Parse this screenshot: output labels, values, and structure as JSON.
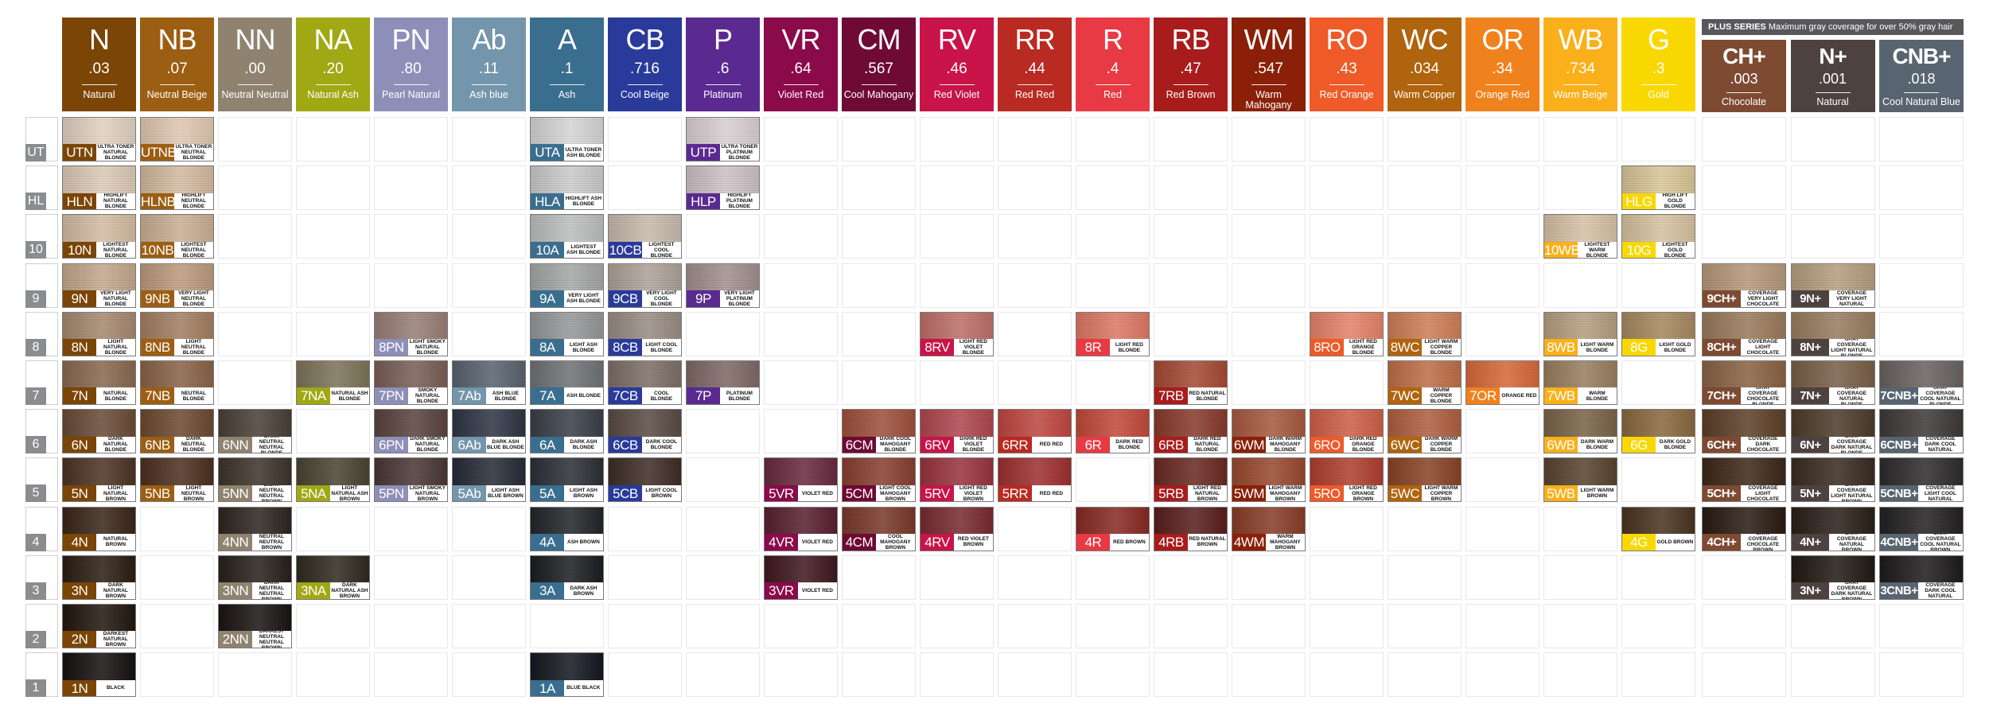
{
  "plus_band": {
    "title": "PLUS SERIES",
    "text": "Maximum gray coverage for over 50% gray hair",
    "color": "#58585a"
  },
  "rows": [
    "UT",
    "HL",
    "10",
    "9",
    "8",
    "7",
    "6",
    "5",
    "4",
    "3",
    "2",
    "1"
  ],
  "columns": [
    {
      "code": "N",
      "value": ".03",
      "name": "Natural",
      "color": "#7b4506",
      "cells": {
        "UT": [
          "UTN",
          "ULTRA TONER NATURAL BLONDE",
          "#e4d4c3"
        ],
        "HL": [
          "HLN",
          "HIGHLIFT NATURAL BLONDE",
          "#dfccb8"
        ],
        "10": [
          "10N",
          "LIGHTEST NATURAL BLONDE",
          "#d6bea4"
        ],
        "9": [
          "9N",
          "VERY LIGHT NATURAL BLONDE",
          "#c6a98e"
        ],
        "8": [
          "8N",
          "LIGHT NATURAL BLONDE",
          "#a88a70"
        ],
        "7": [
          "7N",
          "NATURAL BLONDE",
          "#8a6a50"
        ],
        "6": [
          "6N",
          "DARK NATURAL BLONDE",
          "#6a4c36"
        ],
        "5": [
          "5N",
          "LIGHT NATURAL BROWN",
          "#4e3424"
        ],
        "4": [
          "4N",
          "NATURAL BROWN",
          "#3a2618"
        ],
        "3": [
          "3N",
          "DARK NATURAL BROWN",
          "#2c1e14"
        ],
        "2": [
          "2N",
          "DARKEST NATURAL BROWN",
          "#22170f"
        ],
        "1": [
          "1N",
          "BLACK",
          "#151111"
        ]
      }
    },
    {
      "code": "NB",
      "value": ".07",
      "name": "Neutral Beige",
      "color": "#9c5e12",
      "cells": {
        "UT": [
          "UTNB",
          "ULTRA TONER NEUTRAL BLONDE",
          "#e2cab2"
        ],
        "HL": [
          "HLNB",
          "HIGHLIFT NEUTRAL BLONDE",
          "#d6bca2"
        ],
        "10": [
          "10NB",
          "LIGHTEST NEUTRAL BLONDE",
          "#cdb094"
        ],
        "9": [
          "9NB",
          "VERY LIGHT NEUTRAL BLONDE",
          "#be9c7e"
        ],
        "8": [
          "8NB",
          "LIGHT NEUTRAL BLONDE",
          "#a58062"
        ],
        "7": [
          "7NB",
          "NEUTRAL BLONDE",
          "#8b6448"
        ],
        "6": [
          "6NB",
          "DARK NEUTRAL BLONDE",
          "#6d4a32"
        ],
        "5": [
          "5NB",
          "LIGHT NEUTRAL BROWN",
          "#4e3020"
        ]
      }
    },
    {
      "code": "NN",
      "value": ".00",
      "name": "Neutral Neutral",
      "color": "#8f8370",
      "cells": {
        "6": [
          "6NN",
          "DARK NEUTRAL NEUTRAL BLONDE",
          "#4a4038"
        ],
        "5": [
          "5NN",
          "LIGHT NEUTRAL NEUTRAL BROWN",
          "#3e342c"
        ],
        "4": [
          "4NN",
          "NEUTRAL NEUTRAL BROWN",
          "#2e2620"
        ],
        "3": [
          "3NN",
          "DARK NEUTRAL NEUTRAL BROWN",
          "#28211c"
        ],
        "2": [
          "2NN",
          "DARKEST NEUTRAL NEUTRAL BROWN",
          "#1a1512"
        ]
      }
    },
    {
      "code": "NA",
      "value": ".20",
      "name": "Natural Ash",
      "color": "#a0a814",
      "cells": {
        "7": [
          "7NA",
          "NATURAL ASH BLONDE",
          "#7e7558"
        ],
        "5": [
          "5NA",
          "LIGHT NATURAL ASH BROWN",
          "#4a4534"
        ],
        "3": [
          "3NA",
          "DARK NATURAL ASH BROWN",
          "#302b20"
        ]
      }
    },
    {
      "code": "PN",
      "value": ".80",
      "name": "Pearl Natural",
      "color": "#8e8fb8",
      "cells": {
        "8": [
          "8PN",
          "LIGHT SMOKY NATURAL BLONDE",
          "#9a8078"
        ],
        "7": [
          "7PN",
          "SMOKY NATURAL BLONDE",
          "#7a6058"
        ],
        "6": [
          "6PN",
          "DARK SMOKY NATURAL BLONDE",
          "#5a4440"
        ],
        "5": [
          "5PN",
          "LIGHT SMOKY NATURAL BROWN",
          "#4a3836"
        ]
      }
    },
    {
      "code": "Ab",
      "value": ".11",
      "name": "Ash blue",
      "color": "#7496ac",
      "cells": {
        "7": [
          "7Ab",
          "ASH BLUE BLONDE",
          "#5a6470"
        ],
        "6": [
          "6Ab",
          "DARK ASH BLUE BLONDE",
          "#2e3644"
        ],
        "5": [
          "5Ab",
          "LIGHT ASH BLUE BROWN",
          "#262c38"
        ]
      }
    },
    {
      "code": "A",
      "value": ".1",
      "name": "Ash",
      "color": "#3a6e8e",
      "cells": {
        "UT": [
          "UTA",
          "ULTRA TONER ASH BLONDE",
          "#d8d8d8"
        ],
        "HL": [
          "HLA",
          "HIGHLIFT ASH BLONDE",
          "#cdcdcd"
        ],
        "10": [
          "10A",
          "LIGHTEST ASH BLONDE",
          "#bfc0c0"
        ],
        "9": [
          "9A",
          "VERY LIGHT ASH BLONDE",
          "#a8a9a9"
        ],
        "8": [
          "8A",
          "LIGHT ASH BLONDE",
          "#98999a"
        ],
        "7": [
          "7A",
          "ASH BLONDE",
          "#707476"
        ],
        "6": [
          "6A",
          "DARK ASH BLONDE",
          "#3a4048"
        ],
        "5": [
          "5A",
          "LIGHT ASH BROWN",
          "#2c3036"
        ],
        "4": [
          "4A",
          "ASH BROWN",
          "#22262a"
        ],
        "3": [
          "3A",
          "DARK ASH BROWN",
          "#1c1e22"
        ],
        "1": [
          "1A",
          "BLUE BLACK",
          "#141820"
        ]
      }
    },
    {
      "code": "CB",
      "value": ".716",
      "name": "Cool Beige",
      "color": "#2a3a9a",
      "cells": {
        "10": [
          "10CB",
          "LIGHTEST COOL BLONDE",
          "#cabcae"
        ],
        "9": [
          "9CB",
          "VERY LIGHT COOL BLONDE",
          "#b0a49a"
        ],
        "8": [
          "8CB",
          "LIGHT COOL BLONDE",
          "#9a8e84"
        ],
        "7": [
          "7CB",
          "COOL BLONDE",
          "#7e7068"
        ],
        "6": [
          "6CB",
          "DARK COOL BLONDE",
          "#5a4c44"
        ],
        "5": [
          "5CB",
          "LIGHT COOL BROWN",
          "#3e2e26"
        ]
      }
    },
    {
      "code": "P",
      "value": ".6",
      "name": "Platinum",
      "color": "#5a2a90",
      "cells": {
        "UT": [
          "UTP",
          "ULTRA TONER PLATINUM BLONDE",
          "#dcd2d6"
        ],
        "HL": [
          "HLP",
          "HIGHLIFT PLATINUM BLONDE",
          "#cfc4c8"
        ],
        "9": [
          "9P",
          "VERY LIGHT PLATINUM BLONDE",
          "#a49090"
        ],
        "7": [
          "7P",
          "PLATINUM BLONDE",
          "#806a66"
        ]
      }
    },
    {
      "code": "VR",
      "value": ".64",
      "name": "Violet Red",
      "color": "#8a0a4a",
      "cells": {
        "5": [
          "5VR",
          "VIOLET RED",
          "#6a2a40"
        ],
        "4": [
          "4VR",
          "VIOLET RED",
          "#5a2030"
        ],
        "3": [
          "3VR",
          "VIOLET RED",
          "#401820"
        ]
      }
    },
    {
      "code": "CM",
      "value": ".567",
      "name": "Cool Mahogany",
      "color": "#6e0a34",
      "cells": {
        "6": [
          "6CM",
          "DARK COOL MAHOGANY BLONDE",
          "#a0503c"
        ],
        "5": [
          "5CM",
          "LIGHT COOL MAHOGANY BROWN",
          "#8a4030"
        ],
        "4": [
          "4CM",
          "COOL MAHOGANY BROWN",
          "#7a3a2a"
        ]
      }
    },
    {
      "code": "RV",
      "value": ".46",
      "name": "Red Violet",
      "color": "#c81448",
      "cells": {
        "8": [
          "8RV",
          "LIGHT RED VIOLET BLONDE",
          "#c0706a"
        ],
        "6": [
          "6RV",
          "DARK RED VIOLET BLONDE",
          "#b04850"
        ],
        "5": [
          "5RV",
          "LIGHT RED VIOLET BROWN",
          "#9a3440"
        ],
        "4": [
          "4RV",
          "RED VIOLET BROWN",
          "#7a2a32"
        ]
      }
    },
    {
      "code": "RR",
      "value": ".44",
      "name": "Red Red",
      "color": "#b82a22",
      "cells": {
        "6": [
          "6RR",
          "RED RED",
          "#c04840"
        ],
        "5": [
          "5RR",
          "RED RED",
          "#a03030"
        ]
      }
    },
    {
      "code": "R",
      "value": ".4",
      "name": "Red",
      "color": "#e83a44",
      "cells": {
        "8": [
          "8R",
          "LIGHT RED BLONDE",
          "#e07a66"
        ],
        "6": [
          "6R",
          "DARK RED BLONDE",
          "#c44a3a"
        ],
        "4": [
          "4R",
          "RED BROWN",
          "#8a2a24"
        ]
      }
    },
    {
      "code": "RB",
      "value": ".47",
      "name": "Red Brown",
      "color": "#a81c1c",
      "cells": {
        "7": [
          "7RB",
          "RED NATURAL BLONDE",
          "#a84a36"
        ],
        "6": [
          "6RB",
          "DARK RED NATURAL BLONDE",
          "#8a3a2c"
        ],
        "5": [
          "5RB",
          "LIGHT RED NATURAL BROWN",
          "#6a2a22"
        ],
        "4": [
          "4RB",
          "RED NATURAL BROWN",
          "#5a1e1e"
        ]
      }
    },
    {
      "code": "WM",
      "value": ".547",
      "name": "Warm Mahogany",
      "color": "#8a2008",
      "cells": {
        "6": [
          "6WM",
          "DARK WARM MAHOGANY BLONDE",
          "#a85a40"
        ],
        "5": [
          "5WM",
          "LIGHT WARM MAHOGANY BROWN",
          "#9a4a30"
        ],
        "4": [
          "4WM",
          "WARM MAHOGANY BROWN",
          "#8a3e28"
        ]
      }
    },
    {
      "code": "RO",
      "value": ".43",
      "name": "Red Orange",
      "color": "#ee5a28",
      "cells": {
        "8": [
          "8RO",
          "LIGHT RED ORANGE BLONDE",
          "#e8846a"
        ],
        "6": [
          "6RO",
          "DARK RED ORANGE BLONDE",
          "#d06048"
        ],
        "5": [
          "5RO",
          "LIGHT RED ORANGE BROWN",
          "#b04030"
        ]
      }
    },
    {
      "code": "WC",
      "value": ".034",
      "name": "Warm Copper",
      "color": "#b0640e",
      "cells": {
        "8": [
          "8WC",
          "LIGHT WARM COPPER BLONDE",
          "#d08058"
        ],
        "7": [
          "7WC",
          "WARM COPPER BLONDE",
          "#c07048"
        ],
        "6": [
          "6WC",
          "DARK WARM COPPER BLONDE",
          "#b06040"
        ],
        "5": [
          "5WC",
          "LIGHT WARM COPPER BROWN",
          "#8a4428"
        ]
      }
    },
    {
      "code": "OR",
      "value": ".34",
      "name": "Orange Red",
      "color": "#f0821e",
      "cells": {
        "7": [
          "7OR",
          "ORANGE RED",
          "#d86a3a"
        ]
      }
    },
    {
      "code": "WB",
      "value": ".734",
      "name": "Warm Beige",
      "color": "#fab01a",
      "cells": {
        "10": [
          "10WB",
          "LIGHTEST WARM BLONDE",
          "#d8c4a8"
        ],
        "8": [
          "8WB",
          "LIGHT WARM BLONDE",
          "#b8a080"
        ],
        "7": [
          "7WB",
          "WARM BLONDE",
          "#9a8060"
        ],
        "6": [
          "6WB",
          "DARK WARM BLONDE",
          "#7a6448"
        ],
        "5": [
          "5WB",
          "LIGHT WARM BROWN",
          "#5a4430"
        ]
      }
    },
    {
      "code": "G",
      "value": ".3",
      "name": "Gold",
      "color": "#f8d800",
      "cells": {
        "HL": [
          "HLG",
          "HIGH LIFT GOLD BLONDE",
          "#dcc898"
        ],
        "10": [
          "10G",
          "LIGHTEST GOLD BLONDE",
          "#d8c4a0"
        ],
        "8": [
          "8G",
          "LIGHT GOLD BLONDE",
          "#a88a60"
        ],
        "6": [
          "6G",
          "DARK GOLD BLONDE",
          "#8a6a40"
        ],
        "4": [
          "4G",
          "GOLD BROWN",
          "#4a3420"
        ]
      }
    },
    {
      "code": "CH+",
      "value": ".003",
      "name": "Chocolate",
      "color": "#7e4a32",
      "plus": true,
      "cells": {
        "9": [
          "9CH+",
          "GRAY COVERAGE VERY LIGHT CHOCOLATE BLONDE",
          "#b89a7a"
        ],
        "8": [
          "8CH+",
          "GRAY COVERAGE LIGHT CHOCOLATE BLONDE",
          "#9c7c5c"
        ],
        "7": [
          "7CH+",
          "GRAY COVERAGE CHOCOLATE BLONDE",
          "#8a6444"
        ],
        "6": [
          "6CH+",
          "GRAY COVERAGE DARK CHOCOLATE BLONDE",
          "#5e4028"
        ],
        "5": [
          "5CH+",
          "GRAY COVERAGE LIGHT CHOCOLATE BROWN",
          "#3e2818"
        ],
        "4": [
          "4CH+",
          "GRAY COVERAGE CHOCOLATE BROWN",
          "#2a1c12"
        ]
      }
    },
    {
      "code": "N+",
      "value": ".001",
      "name": "Natural",
      "color": "#4e4240",
      "plus": true,
      "cells": {
        "9": [
          "9N+",
          "GRAY COVERAGE VERY LIGHT NATURAL BLONDE",
          "#b8a080"
        ],
        "8": [
          "8N+",
          "GRAY COVERAGE LIGHT NATURAL BLONDE",
          "#9a7e60"
        ],
        "7": [
          "7N+",
          "GRAY COVERAGE NATURAL BLONDE",
          "#7a6048"
        ],
        "6": [
          "6N+",
          "GRAY COVERAGE DARK NATURAL BLONDE",
          "#4e3c2c"
        ],
        "5": [
          "5N+",
          "GRAY COVERAGE LIGHT NATURAL BROWN",
          "#3a2c22"
        ],
        "4": [
          "4N+",
          "GRAY COVERAGE NATURAL BROWN",
          "#2a2018"
        ],
        "3": [
          "3N+",
          "GRAY COVERAGE DARK NATURAL BROWN",
          "#221a14"
        ]
      }
    },
    {
      "code": "CNB+",
      "value": ".018",
      "name": "Cool Natural Blue",
      "color": "#586470",
      "plus": true,
      "cells": {
        "7": [
          "7CNB+",
          "GRAY COVERAGE COOL NATURAL BLONDE",
          "#6a6462"
        ],
        "6": [
          "6CNB+",
          "GRAY COVERAGE DARK COOL NATURAL BLONDE",
          "#3e3a38"
        ],
        "5": [
          "5CNB+",
          "GRAY COVERAGE LIGHT COOL NATURAL BROWN",
          "#2e2c2c"
        ],
        "4": [
          "4CNB+",
          "GRAY COVERAGE COOL NATURAL BROWN",
          "#242222"
        ],
        "3": [
          "3CNB+",
          "GRAY COVERAGE DARK COOL NATURAL BROWN",
          "#1e1c1c"
        ]
      }
    }
  ]
}
